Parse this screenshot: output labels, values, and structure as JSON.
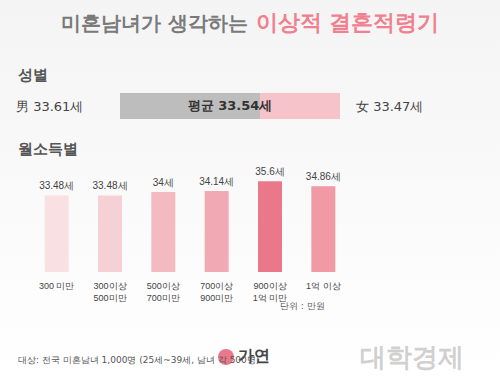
{
  "title": [
    "미혼남녀가 생각하는",
    "이상적 결혼적령기"
  ],
  "gender": {
    "heading": "성별",
    "male": {
      "label": "男",
      "value": 33.61,
      "value_label": "33.61세"
    },
    "average": {
      "label": "평균",
      "value": 33.54,
      "value_label": "33.54세"
    },
    "female": {
      "label": "女",
      "value": 33.47,
      "value_label": "33.47세"
    }
  },
  "chart_data": {
    "type": "bar",
    "title": "월소득별",
    "categories": [
      "300 미만",
      "300이상\n500미만",
      "500이상\n700미만",
      "700이상\n900미만",
      "900이상\n1억 미만",
      "1억 이상"
    ],
    "values": [
      33.48,
      33.48,
      34,
      34.14,
      35.6,
      34.86
    ],
    "value_labels": [
      "33.48세",
      "33.48세",
      "34세",
      "34.14세",
      "35.6세",
      "34.86세"
    ],
    "colors": [
      "#f8e0e3",
      "#f5d0d5",
      "#f3bac2",
      "#f1a9b3",
      "#e8788a",
      "#ef9aa5"
    ],
    "ylim": [
      22,
      37
    ],
    "data_labels": true,
    "tick_labels": "x",
    "grid": false,
    "unit_note": "단위 : 만원"
  },
  "footer": "대상: 전국 미혼남녀 1,000명 (25세~39세, 남녀 각 500명)",
  "logo": "가연",
  "watermark": "대학경제"
}
